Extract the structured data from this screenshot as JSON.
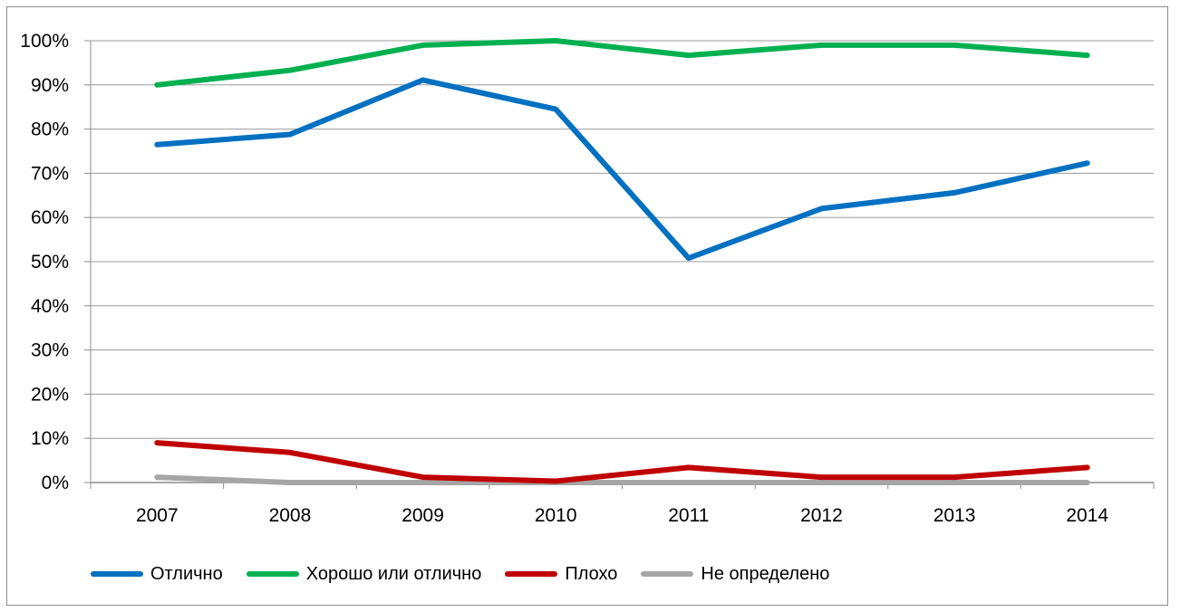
{
  "chart_data": {
    "type": "line",
    "title": "",
    "xlabel": "",
    "ylabel": "",
    "categories": [
      "2007",
      "2008",
      "2009",
      "2010",
      "2011",
      "2012",
      "2013",
      "2014"
    ],
    "ylim": [
      0,
      100
    ],
    "y_ticks": [
      "0%",
      "10%",
      "20%",
      "30%",
      "40%",
      "50%",
      "60%",
      "70%",
      "80%",
      "90%",
      "100%"
    ],
    "y_tick_values": [
      0,
      10,
      20,
      30,
      40,
      50,
      60,
      70,
      80,
      90,
      100
    ],
    "grid": true,
    "legend_position": "bottom",
    "series": [
      {
        "name": "Отлично",
        "color": "#0070C0",
        "values": [
          76.5,
          78.8,
          91.1,
          84.5,
          50.8,
          62.0,
          65.6,
          72.3
        ]
      },
      {
        "name": "Хорошо или отлично",
        "color": "#00B050",
        "values": [
          90.0,
          93.3,
          99.0,
          100.0,
          96.7,
          99.0,
          99.0,
          96.7
        ]
      },
      {
        "name": "Плохо",
        "color": "#C00000",
        "values": [
          9.0,
          6.8,
          1.2,
          0.3,
          3.4,
          1.2,
          1.2,
          3.4
        ]
      },
      {
        "name": "Не определено",
        "color": "#A6A6A6",
        "values": [
          1.2,
          0.0,
          0.0,
          0.0,
          0.0,
          0.0,
          0.0,
          0.0
        ]
      }
    ]
  }
}
